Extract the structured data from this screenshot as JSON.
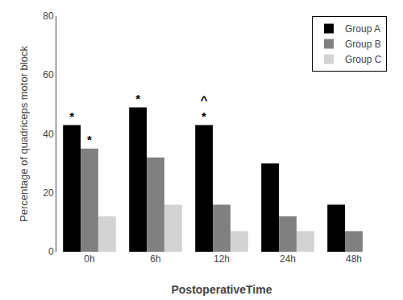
{
  "chart_data": {
    "type": "bar",
    "categories": [
      "0h",
      "6h",
      "12h",
      "24h",
      "48h"
    ],
    "series": [
      {
        "name": "Group A",
        "color": "#000000",
        "values": [
          43,
          49,
          43,
          30,
          16
        ]
      },
      {
        "name": "Group B",
        "color": "#808080",
        "values": [
          35,
          32,
          16,
          12,
          7
        ]
      },
      {
        "name": "Group C",
        "color": "#d3d3d3",
        "values": [
          12,
          16,
          7,
          7,
          0
        ]
      }
    ],
    "xlabel": "PostoperativeTime",
    "ylabel": "Percentage of quadriceps motor block",
    "ylim": [
      0,
      80
    ],
    "yticks": [
      0,
      20,
      40,
      60,
      80
    ],
    "grid": false,
    "legend": "upper right",
    "annotations": [
      {
        "text": "*",
        "category": "0h",
        "series": "Group A"
      },
      {
        "text": "*",
        "category": "0h",
        "series": "Group B"
      },
      {
        "text": "*",
        "category": "6h",
        "series": "Group A"
      },
      {
        "text": "*",
        "category": "12h",
        "series": "Group A"
      },
      {
        "text": "^",
        "category": "12h",
        "series": "Group A"
      }
    ]
  }
}
